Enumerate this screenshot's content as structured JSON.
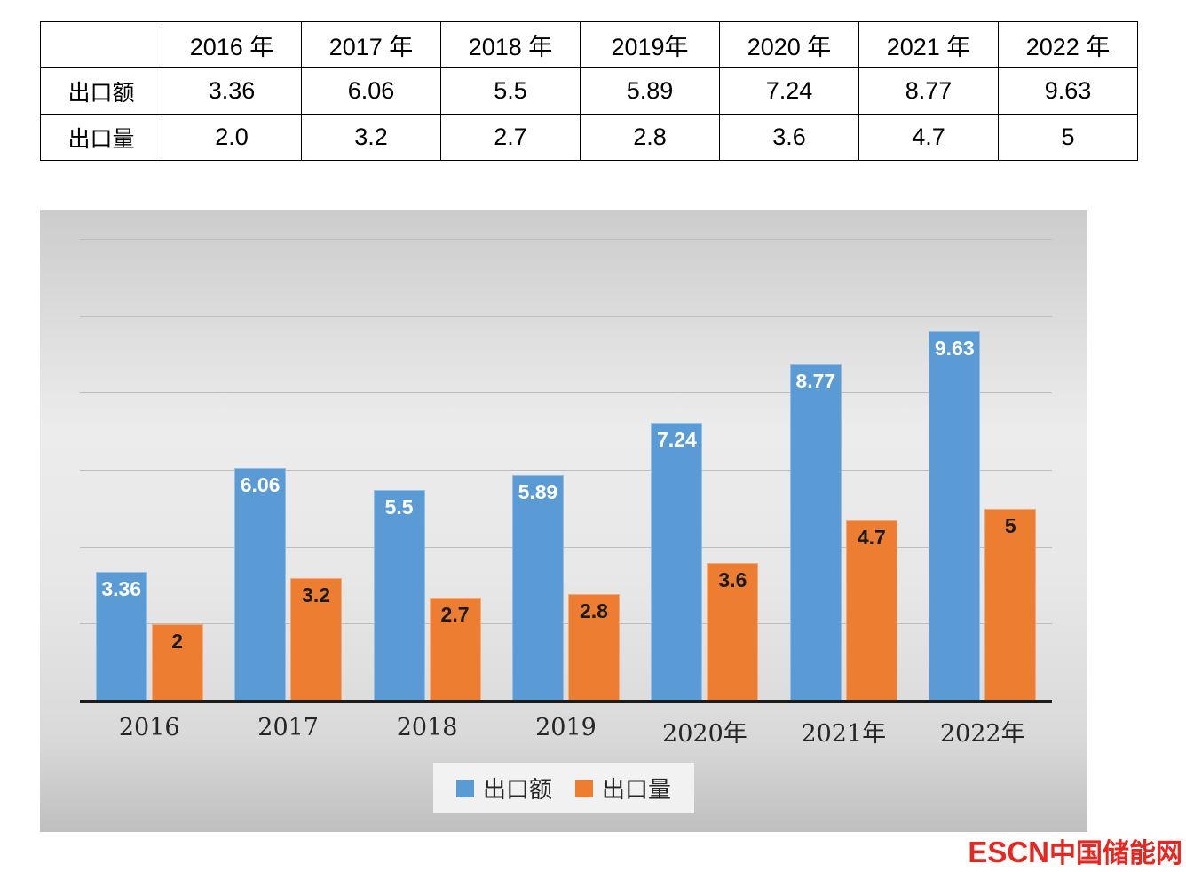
{
  "table": {
    "corner": "",
    "years": [
      "2016 年",
      "2017 年",
      "2018 年",
      "2019年",
      "2020 年",
      "2021 年",
      "2022 年"
    ],
    "rows": [
      {
        "label": "出口额",
        "values": [
          "3.36",
          "6.06",
          "5.5",
          "5.89",
          "7.24",
          "8.77",
          "9.63"
        ]
      },
      {
        "label": "出口量",
        "values": [
          "2.0",
          "3.2",
          "2.7",
          "2.8",
          "3.6",
          "4.7",
          "5"
        ]
      }
    ]
  },
  "chart_data": {
    "type": "bar",
    "title": "",
    "categories": [
      "2016",
      "2017",
      "2018",
      "2019",
      "2020年",
      "2021年",
      "2022年"
    ],
    "series": [
      {
        "name": "出口额",
        "color": "#5B9BD5",
        "label_color": "#ffffff",
        "values": [
          3.36,
          6.06,
          5.5,
          5.89,
          7.24,
          8.77,
          9.63
        ]
      },
      {
        "name": "出口量",
        "color": "#ED7D31",
        "label_color": "#1a1a1a",
        "values": [
          2,
          3.2,
          2.7,
          2.8,
          3.6,
          4.7,
          5
        ]
      }
    ],
    "ylim": [
      0,
      12
    ],
    "grid_step": 2,
    "grid": true,
    "legend_position": "bottom",
    "plot_background": "gray-gradient"
  },
  "watermark": {
    "logo": "ESCN",
    "text": "中国储能网",
    "color": "#e8261f"
  }
}
